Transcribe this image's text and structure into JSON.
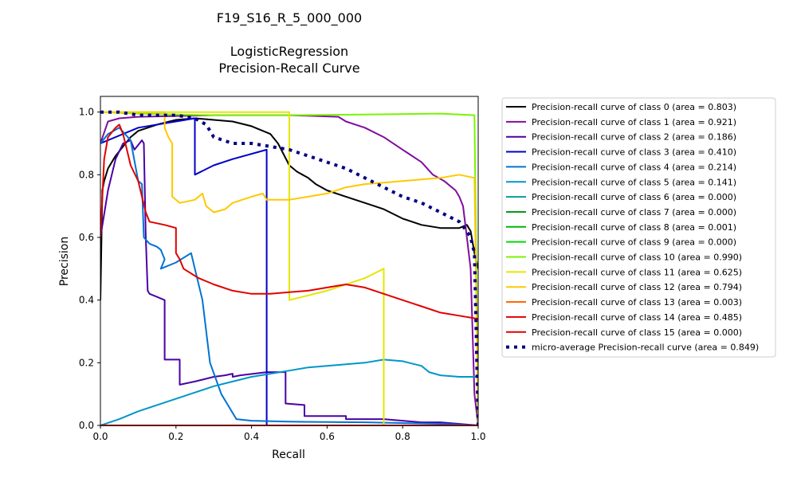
{
  "chart_data": {
    "type": "line",
    "title_lines": [
      "F19_S16_R_5_000_000",
      "",
      "LogisticRegression",
      "Precision-Recall Curve"
    ],
    "xlabel": "Recall",
    "ylabel": "Precision",
    "xlim": [
      0.0,
      1.0
    ],
    "ylim": [
      0.0,
      1.05
    ],
    "xticks": [
      "0.0",
      "0.2",
      "0.4",
      "0.6",
      "0.8",
      "1.0"
    ],
    "yticks": [
      "0.0",
      "0.2",
      "0.4",
      "0.6",
      "0.8",
      "1.0"
    ],
    "grid": false,
    "legend_position": "outside-right",
    "series": [
      {
        "name": "Precision-recall curve of class 0 (area = 0.803)",
        "color": "#000000",
        "points": [
          [
            0,
            0.4
          ],
          [
            0.005,
            0.75
          ],
          [
            0.01,
            0.78
          ],
          [
            0.02,
            0.82
          ],
          [
            0.04,
            0.86
          ],
          [
            0.06,
            0.89
          ],
          [
            0.08,
            0.92
          ],
          [
            0.1,
            0.94
          ],
          [
            0.15,
            0.96
          ],
          [
            0.2,
            0.975
          ],
          [
            0.25,
            0.98
          ],
          [
            0.3,
            0.975
          ],
          [
            0.35,
            0.97
          ],
          [
            0.4,
            0.955
          ],
          [
            0.45,
            0.93
          ],
          [
            0.47,
            0.9
          ],
          [
            0.5,
            0.83
          ],
          [
            0.52,
            0.81
          ],
          [
            0.55,
            0.79
          ],
          [
            0.57,
            0.77
          ],
          [
            0.6,
            0.75
          ],
          [
            0.65,
            0.73
          ],
          [
            0.7,
            0.71
          ],
          [
            0.75,
            0.69
          ],
          [
            0.8,
            0.66
          ],
          [
            0.85,
            0.64
          ],
          [
            0.9,
            0.63
          ],
          [
            0.95,
            0.63
          ],
          [
            0.97,
            0.64
          ],
          [
            0.98,
            0.62
          ],
          [
            0.99,
            0.55
          ],
          [
            1.0,
            0.5
          ]
        ]
      },
      {
        "name": "Precision-recall curve of class 1 (area = 0.921)",
        "color": "#7f0f9e",
        "points": [
          [
            0,
            0.9
          ],
          [
            0.02,
            0.97
          ],
          [
            0.05,
            0.98
          ],
          [
            0.1,
            0.985
          ],
          [
            0.3,
            0.99
          ],
          [
            0.5,
            0.99
          ],
          [
            0.63,
            0.985
          ],
          [
            0.65,
            0.97
          ],
          [
            0.7,
            0.95
          ],
          [
            0.75,
            0.92
          ],
          [
            0.8,
            0.88
          ],
          [
            0.85,
            0.84
          ],
          [
            0.88,
            0.8
          ],
          [
            0.91,
            0.78
          ],
          [
            0.94,
            0.75
          ],
          [
            0.95,
            0.73
          ],
          [
            0.96,
            0.7
          ],
          [
            0.97,
            0.6
          ],
          [
            0.98,
            0.5
          ],
          [
            0.99,
            0.1
          ],
          [
            1.0,
            0.0
          ]
        ]
      },
      {
        "name": "Precision-recall curve of class 2 (area = 0.186)",
        "color": "#4b00a5",
        "points": [
          [
            0,
            0.6
          ],
          [
            0.02,
            0.75
          ],
          [
            0.04,
            0.85
          ],
          [
            0.06,
            0.9
          ],
          [
            0.08,
            0.91
          ],
          [
            0.09,
            0.88
          ],
          [
            0.11,
            0.91
          ],
          [
            0.115,
            0.9
          ],
          [
            0.12,
            0.6
          ],
          [
            0.125,
            0.43
          ],
          [
            0.13,
            0.42
          ],
          [
            0.15,
            0.41
          ],
          [
            0.17,
            0.4
          ],
          [
            0.17,
            0.21
          ],
          [
            0.21,
            0.21
          ],
          [
            0.21,
            0.13
          ],
          [
            0.25,
            0.14
          ],
          [
            0.3,
            0.155
          ],
          [
            0.33,
            0.16
          ],
          [
            0.35,
            0.165
          ],
          [
            0.35,
            0.155
          ],
          [
            0.37,
            0.16
          ],
          [
            0.44,
            0.17
          ],
          [
            0.49,
            0.17
          ],
          [
            0.49,
            0.07
          ],
          [
            0.54,
            0.065
          ],
          [
            0.54,
            0.03
          ],
          [
            0.6,
            0.03
          ],
          [
            0.65,
            0.03
          ],
          [
            0.65,
            0.02
          ],
          [
            0.75,
            0.02
          ],
          [
            0.8,
            0.015
          ],
          [
            0.85,
            0.01
          ],
          [
            0.9,
            0.01
          ],
          [
            1.0,
            0.0
          ]
        ]
      },
      {
        "name": "Precision-recall curve of class 3 (area = 0.410)",
        "color": "#0000c8",
        "points": [
          [
            0,
            0.9
          ],
          [
            0.1,
            0.95
          ],
          [
            0.2,
            0.97
          ],
          [
            0.25,
            0.98
          ],
          [
            0.25,
            0.8
          ],
          [
            0.3,
            0.83
          ],
          [
            0.35,
            0.85
          ],
          [
            0.44,
            0.88
          ],
          [
            0.44,
            0.0
          ],
          [
            0.6,
            0.0
          ],
          [
            1.0,
            0.0
          ]
        ]
      },
      {
        "name": "Precision-recall curve of class 4 (area = 0.214)",
        "color": "#0073d2",
        "points": [
          [
            0,
            0.9
          ],
          [
            0.02,
            0.93
          ],
          [
            0.05,
            0.95
          ],
          [
            0.08,
            0.91
          ],
          [
            0.1,
            0.78
          ],
          [
            0.11,
            0.77
          ],
          [
            0.115,
            0.6
          ],
          [
            0.13,
            0.58
          ],
          [
            0.15,
            0.57
          ],
          [
            0.16,
            0.56
          ],
          [
            0.17,
            0.53
          ],
          [
            0.16,
            0.5
          ],
          [
            0.2,
            0.52
          ],
          [
            0.24,
            0.55
          ],
          [
            0.25,
            0.5
          ],
          [
            0.27,
            0.4
          ],
          [
            0.29,
            0.2
          ],
          [
            0.32,
            0.1
          ],
          [
            0.35,
            0.04
          ],
          [
            0.36,
            0.02
          ],
          [
            0.4,
            0.015
          ],
          [
            0.5,
            0.012
          ],
          [
            0.7,
            0.01
          ],
          [
            0.9,
            0.005
          ],
          [
            1.0,
            0.0
          ]
        ]
      },
      {
        "name": "Precision-recall curve of class 5 (area = 0.141)",
        "color": "#0096c8",
        "points": [
          [
            0,
            0.0
          ],
          [
            0.05,
            0.02
          ],
          [
            0.1,
            0.045
          ],
          [
            0.15,
            0.065
          ],
          [
            0.2,
            0.085
          ],
          [
            0.25,
            0.105
          ],
          [
            0.3,
            0.125
          ],
          [
            0.35,
            0.14
          ],
          [
            0.4,
            0.155
          ],
          [
            0.45,
            0.165
          ],
          [
            0.5,
            0.175
          ],
          [
            0.55,
            0.185
          ],
          [
            0.6,
            0.19
          ],
          [
            0.65,
            0.195
          ],
          [
            0.7,
            0.2
          ],
          [
            0.75,
            0.21
          ],
          [
            0.8,
            0.205
          ],
          [
            0.85,
            0.19
          ],
          [
            0.87,
            0.17
          ],
          [
            0.9,
            0.16
          ],
          [
            0.95,
            0.155
          ],
          [
            1.0,
            0.155
          ]
        ]
      },
      {
        "name": "Precision-recall curve of class 6 (area = 0.000)",
        "color": "#00a096",
        "points": [
          [
            0,
            0.0
          ],
          [
            1.0,
            0.0
          ]
        ]
      },
      {
        "name": "Precision-recall curve of class 7 (area = 0.000)",
        "color": "#009b1a",
        "points": [
          [
            0,
            0.0
          ],
          [
            1.0,
            0.0
          ]
        ]
      },
      {
        "name": "Precision-recall curve of class 8 (area = 0.001)",
        "color": "#00b800",
        "points": [
          [
            0,
            0.0
          ],
          [
            1.0,
            0.0
          ]
        ]
      },
      {
        "name": "Precision-recall curve of class 9 (area = 0.000)",
        "color": "#00dc00",
        "points": [
          [
            0,
            0.0
          ],
          [
            1.0,
            0.0
          ]
        ]
      },
      {
        "name": "Precision-recall curve of class 10 (area = 0.990)",
        "color": "#78f500",
        "points": [
          [
            0,
            1.0
          ],
          [
            0.1,
            0.995
          ],
          [
            0.3,
            0.99
          ],
          [
            0.5,
            0.99
          ],
          [
            0.7,
            0.992
          ],
          [
            0.9,
            0.995
          ],
          [
            0.99,
            0.99
          ],
          [
            1.0,
            0.0
          ]
        ]
      },
      {
        "name": "Precision-recall curve of class 11 (area = 0.625)",
        "color": "#e6e600",
        "points": [
          [
            0,
            1.0
          ],
          [
            0.5,
            1.0
          ],
          [
            0.5,
            0.4
          ],
          [
            0.6,
            0.43
          ],
          [
            0.7,
            0.47
          ],
          [
            0.75,
            0.5
          ],
          [
            0.75,
            0.0
          ],
          [
            1.0,
            0.0
          ]
        ]
      },
      {
        "name": "Precision-recall curve of class 12 (area = 0.794)",
        "color": "#ffc800",
        "points": [
          [
            0,
            1.0
          ],
          [
            0.1,
            1.0
          ],
          [
            0.17,
            1.0
          ],
          [
            0.17,
            0.95
          ],
          [
            0.18,
            0.92
          ],
          [
            0.19,
            0.9
          ],
          [
            0.19,
            0.73
          ],
          [
            0.21,
            0.71
          ],
          [
            0.25,
            0.72
          ],
          [
            0.27,
            0.74
          ],
          [
            0.28,
            0.7
          ],
          [
            0.3,
            0.68
          ],
          [
            0.33,
            0.69
          ],
          [
            0.35,
            0.71
          ],
          [
            0.4,
            0.73
          ],
          [
            0.43,
            0.74
          ],
          [
            0.44,
            0.72
          ],
          [
            0.5,
            0.72
          ],
          [
            0.55,
            0.73
          ],
          [
            0.6,
            0.74
          ],
          [
            0.65,
            0.76
          ],
          [
            0.7,
            0.77
          ],
          [
            0.75,
            0.775
          ],
          [
            0.8,
            0.78
          ],
          [
            0.85,
            0.785
          ],
          [
            0.9,
            0.79
          ],
          [
            0.95,
            0.8
          ],
          [
            0.99,
            0.79
          ],
          [
            1.0,
            0.0
          ]
        ]
      },
      {
        "name": "Precision-recall curve of class 13 (area = 0.003)",
        "color": "#ff6900",
        "points": [
          [
            0,
            0.0
          ],
          [
            1.0,
            0.0
          ]
        ]
      },
      {
        "name": "Precision-recall curve of class 14 (area = 0.485)",
        "color": "#e10000",
        "points": [
          [
            0,
            0.6
          ],
          [
            0.01,
            0.85
          ],
          [
            0.02,
            0.92
          ],
          [
            0.04,
            0.95
          ],
          [
            0.05,
            0.96
          ],
          [
            0.06,
            0.93
          ],
          [
            0.07,
            0.88
          ],
          [
            0.08,
            0.83
          ],
          [
            0.1,
            0.78
          ],
          [
            0.11,
            0.73
          ],
          [
            0.12,
            0.68
          ],
          [
            0.13,
            0.65
          ],
          [
            0.17,
            0.64
          ],
          [
            0.2,
            0.63
          ],
          [
            0.2,
            0.55
          ],
          [
            0.21,
            0.53
          ],
          [
            0.22,
            0.5
          ],
          [
            0.26,
            0.47
          ],
          [
            0.3,
            0.45
          ],
          [
            0.35,
            0.43
          ],
          [
            0.4,
            0.42
          ],
          [
            0.45,
            0.42
          ],
          [
            0.5,
            0.425
          ],
          [
            0.55,
            0.43
          ],
          [
            0.6,
            0.44
          ],
          [
            0.65,
            0.45
          ],
          [
            0.7,
            0.44
          ],
          [
            0.75,
            0.42
          ],
          [
            0.8,
            0.4
          ],
          [
            0.85,
            0.38
          ],
          [
            0.9,
            0.36
          ],
          [
            0.95,
            0.35
          ],
          [
            1.0,
            0.34
          ]
        ]
      },
      {
        "name": "Precision-recall curve of class 15 (area = 0.000)",
        "color": "#e10000",
        "points": [
          [
            0,
            0.0
          ],
          [
            1.0,
            0.0
          ]
        ]
      },
      {
        "name": "micro-average Precision-recall curve (area = 0.849)",
        "color": "#000080",
        "dotted": true,
        "points": [
          [
            0,
            1.0
          ],
          [
            0.01,
            1.0
          ],
          [
            0.05,
            1.0
          ],
          [
            0.1,
            0.99
          ],
          [
            0.2,
            0.99
          ],
          [
            0.25,
            0.98
          ],
          [
            0.28,
            0.96
          ],
          [
            0.3,
            0.92
          ],
          [
            0.35,
            0.9
          ],
          [
            0.4,
            0.9
          ],
          [
            0.45,
            0.89
          ],
          [
            0.5,
            0.88
          ],
          [
            0.55,
            0.86
          ],
          [
            0.6,
            0.84
          ],
          [
            0.65,
            0.82
          ],
          [
            0.7,
            0.79
          ],
          [
            0.75,
            0.76
          ],
          [
            0.8,
            0.73
          ],
          [
            0.85,
            0.71
          ],
          [
            0.9,
            0.68
          ],
          [
            0.95,
            0.65
          ],
          [
            0.97,
            0.62
          ],
          [
            0.98,
            0.6
          ],
          [
            0.99,
            0.55
          ],
          [
            1.0,
            0.0
          ]
        ]
      }
    ]
  }
}
